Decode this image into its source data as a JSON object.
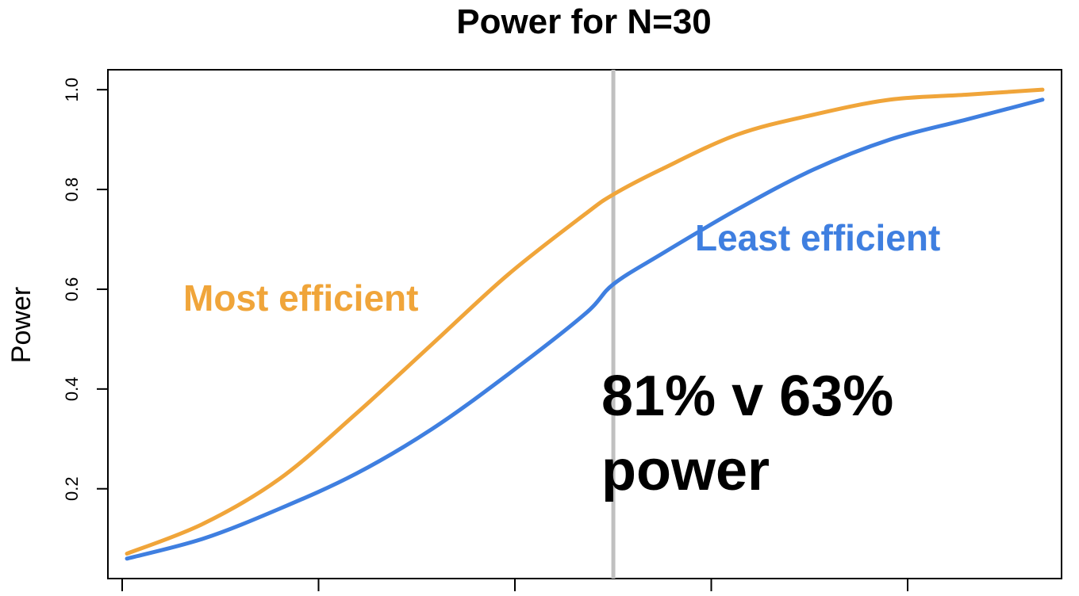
{
  "chart_data": {
    "type": "line",
    "title": "Power for N=30",
    "xlabel": "",
    "ylabel": "Power",
    "xlim": [
      0,
      1
    ],
    "ylim": [
      0.02,
      1.04
    ],
    "x_ticks": [
      0.0,
      0.22,
      0.44,
      0.66,
      0.88
    ],
    "y_ticks": [
      0.2,
      0.4,
      0.6,
      0.8,
      1.0
    ],
    "y_tick_labels": [
      "0.2",
      "0.4",
      "0.6",
      "0.8",
      "1.0"
    ],
    "grid": false,
    "reference_line": {
      "x": 0.53,
      "color": "#c0c0c0"
    },
    "series": [
      {
        "name": "Most efficient",
        "color": "#f0a53a",
        "x": [
          0.02,
          0.1,
          0.18,
          0.26,
          0.34,
          0.42,
          0.5,
          0.53,
          0.58,
          0.66,
          0.74,
          0.82,
          0.9,
          0.98
        ],
        "y": [
          0.07,
          0.13,
          0.22,
          0.35,
          0.49,
          0.63,
          0.75,
          0.79,
          0.84,
          0.91,
          0.95,
          0.98,
          0.99,
          1.0
        ]
      },
      {
        "name": "Least efficient",
        "color": "#3f7fe0",
        "x": [
          0.02,
          0.1,
          0.18,
          0.26,
          0.34,
          0.42,
          0.5,
          0.53,
          0.58,
          0.66,
          0.74,
          0.82,
          0.9,
          0.98
        ],
        "y": [
          0.06,
          0.1,
          0.16,
          0.23,
          0.32,
          0.43,
          0.55,
          0.61,
          0.67,
          0.76,
          0.84,
          0.9,
          0.94,
          0.98
        ]
      }
    ],
    "series_labels": [
      {
        "text": "Most efficient",
        "color": "#f0a53a",
        "anchor": "left-middle"
      },
      {
        "text": "Least efficient",
        "color": "#3f7fe0",
        "anchor": "right-upper"
      }
    ],
    "annotation": {
      "lines": [
        "81% v 63%",
        "power"
      ]
    }
  }
}
